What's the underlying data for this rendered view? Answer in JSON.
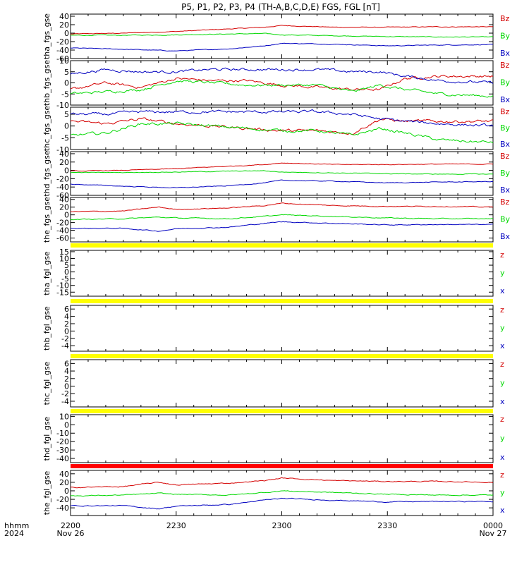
{
  "title": "P5, P1, P2, P3, P4 (TH-A,B,C,D,E) FGS, FGL [nT]",
  "time_axis": {
    "row1_label": "hhmm",
    "row2_label": "2024",
    "ticks": [
      {
        "t": 0,
        "label": "2200",
        "sub": "Nov 26"
      },
      {
        "t": 30,
        "label": "2230",
        "sub": ""
      },
      {
        "t": 60,
        "label": "2300",
        "sub": ""
      },
      {
        "t": 90,
        "label": "2330",
        "sub": ""
      },
      {
        "t": 120,
        "label": "0000",
        "sub": "Nov 27"
      }
    ],
    "range_minutes": [
      0,
      120
    ]
  },
  "colors": {
    "z": "#d40000",
    "y": "#00d800",
    "x": "#0000c0",
    "flag_yellow": "#ffff00",
    "flag_red": "#ff0000"
  },
  "chart_data": [
    {
      "type": "line",
      "ylabel": "tha_fgs_gse",
      "ylim": [
        -60,
        45
      ],
      "yticks": [
        40,
        20,
        0,
        -20,
        -40,
        -60
      ],
      "legend": [
        "Bz",
        "By",
        "Bx"
      ],
      "noise": 1.2,
      "series": [
        {
          "name": "Bz",
          "color": "z",
          "x": [
            0,
            15,
            30,
            45,
            55,
            60,
            75,
            90,
            105,
            120
          ],
          "y": [
            -2,
            0,
            4,
            10,
            14,
            18,
            14,
            14,
            15,
            15
          ]
        },
        {
          "name": "By",
          "color": "y",
          "x": [
            0,
            15,
            30,
            45,
            55,
            60,
            75,
            90,
            105,
            120
          ],
          "y": [
            -5,
            -5,
            -4,
            -2,
            -1,
            -4,
            -6,
            -8,
            -9,
            -9
          ]
        },
        {
          "name": "Bx",
          "color": "x",
          "x": [
            0,
            15,
            30,
            45,
            55,
            60,
            75,
            90,
            105,
            120
          ],
          "y": [
            -35,
            -38,
            -42,
            -37,
            -30,
            -24,
            -26,
            -30,
            -28,
            -27
          ]
        }
      ]
    },
    {
      "type": "line",
      "ylabel": "thb_fgs_gse",
      "ylim": [
        -10,
        10
      ],
      "yticks": [
        10,
        5,
        0,
        -5,
        -10
      ],
      "legend": [
        "Bz",
        "By",
        "Bx"
      ],
      "noise": 0.9,
      "series": [
        {
          "name": "Bz",
          "color": "z",
          "x": [
            0,
            10,
            20,
            30,
            40,
            50,
            60,
            70,
            80,
            88,
            95,
            105,
            120
          ],
          "y": [
            -3,
            0,
            -2,
            2,
            1,
            1,
            -1,
            -2,
            -3,
            -3,
            2,
            3,
            3
          ]
        },
        {
          "name": "By",
          "color": "y",
          "x": [
            0,
            10,
            20,
            30,
            40,
            50,
            60,
            70,
            80,
            88,
            95,
            105,
            120
          ],
          "y": [
            -5,
            -4,
            -3,
            1,
            0,
            -1,
            -1,
            -1,
            -4,
            -1,
            -3,
            -5,
            -6
          ]
        },
        {
          "name": "Bx",
          "color": "x",
          "x": [
            0,
            10,
            20,
            30,
            40,
            50,
            60,
            70,
            80,
            88,
            95,
            105,
            120
          ],
          "y": [
            4,
            6,
            5,
            5,
            6,
            6,
            6,
            6,
            5,
            5,
            3,
            1,
            0
          ]
        }
      ]
    },
    {
      "type": "line",
      "ylabel": "thc_fgs_gse",
      "ylim": [
        -10,
        8
      ],
      "yticks": [
        5,
        0,
        -5,
        -10
      ],
      "legend": [
        "Bz",
        "By",
        "Bx"
      ],
      "noise": 0.9,
      "series": [
        {
          "name": "Bz",
          "color": "z",
          "x": [
            0,
            10,
            20,
            30,
            40,
            50,
            60,
            70,
            80,
            88,
            95,
            105,
            120
          ],
          "y": [
            2,
            1,
            3,
            1,
            0,
            -1,
            -2,
            -2,
            -3,
            3,
            2,
            2,
            2
          ]
        },
        {
          "name": "By",
          "color": "y",
          "x": [
            0,
            10,
            20,
            30,
            40,
            50,
            60,
            70,
            80,
            88,
            95,
            105,
            120
          ],
          "y": [
            -4,
            -3,
            1,
            1,
            0,
            -1,
            -2,
            -2,
            -4,
            -1,
            -3,
            -6,
            -7
          ]
        },
        {
          "name": "Bx",
          "color": "x",
          "x": [
            0,
            10,
            20,
            30,
            40,
            50,
            60,
            70,
            80,
            88,
            95,
            105,
            120
          ],
          "y": [
            5,
            5,
            6,
            6,
            6,
            6,
            6,
            6,
            5,
            3,
            2,
            1,
            0
          ]
        }
      ]
    },
    {
      "type": "line",
      "ylabel": "thd_fgs_gse",
      "ylim": [
        -60,
        45
      ],
      "yticks": [
        40,
        20,
        0,
        -20,
        -40,
        -60
      ],
      "legend": [
        "Bz",
        "By",
        "Bx"
      ],
      "noise": 1.2,
      "series": [
        {
          "name": "Bz",
          "color": "z",
          "x": [
            0,
            15,
            30,
            45,
            55,
            60,
            75,
            90,
            105,
            120
          ],
          "y": [
            -2,
            0,
            4,
            10,
            14,
            18,
            14,
            14,
            15,
            15
          ]
        },
        {
          "name": "By",
          "color": "y",
          "x": [
            0,
            15,
            30,
            45,
            55,
            60,
            75,
            90,
            105,
            120
          ],
          "y": [
            -5,
            -5,
            -4,
            -2,
            -1,
            -4,
            -6,
            -8,
            -9,
            -9
          ]
        },
        {
          "name": "Bx",
          "color": "x",
          "x": [
            0,
            15,
            30,
            45,
            55,
            60,
            75,
            90,
            105,
            120
          ],
          "y": [
            -33,
            -38,
            -42,
            -37,
            -30,
            -24,
            -26,
            -30,
            -28,
            -27
          ]
        }
      ]
    },
    {
      "type": "line",
      "ylabel": "the_fgs_gse",
      "ylim": [
        -70,
        45
      ],
      "yticks": [
        40,
        20,
        0,
        -20,
        -40,
        -60
      ],
      "legend": [
        "Bz",
        "By",
        "Bx"
      ],
      "noise": 1.6,
      "series": [
        {
          "name": "Bz",
          "color": "z",
          "x": [
            0,
            15,
            25,
            30,
            45,
            55,
            60,
            75,
            90,
            105,
            120
          ],
          "y": [
            8,
            10,
            20,
            14,
            18,
            24,
            30,
            24,
            22,
            22,
            20
          ]
        },
        {
          "name": "By",
          "color": "y",
          "x": [
            0,
            15,
            25,
            30,
            45,
            55,
            60,
            75,
            90,
            105,
            120
          ],
          "y": [
            -12,
            -10,
            -6,
            -8,
            -10,
            -4,
            0,
            -4,
            -8,
            -10,
            -10
          ]
        },
        {
          "name": "Bx",
          "color": "x",
          "x": [
            0,
            15,
            25,
            30,
            45,
            55,
            60,
            75,
            90,
            105,
            120
          ],
          "y": [
            -35,
            -35,
            -42,
            -36,
            -32,
            -22,
            -18,
            -22,
            -26,
            -25,
            -25
          ]
        }
      ]
    },
    {
      "type": "line",
      "ylabel": "tha_fgl_gse",
      "ylim": [
        -18,
        16
      ],
      "yticks": [
        15,
        10,
        5,
        0,
        -5,
        -10,
        -15
      ],
      "legend": [
        "z",
        "y",
        "x"
      ],
      "flag": "flag_yellow",
      "noise": 0,
      "series": []
    },
    {
      "type": "line",
      "ylabel": "thb_fgl_gse",
      "ylim": [
        -5.5,
        7
      ],
      "yticks": [
        6,
        4,
        2,
        0,
        -2,
        -4
      ],
      "legend": [
        "z",
        "y",
        "x"
      ],
      "flag": "flag_yellow",
      "noise": 0,
      "series": []
    },
    {
      "type": "line",
      "ylabel": "thc_fgl_gse",
      "ylim": [
        -5.5,
        7
      ],
      "yticks": [
        6,
        4,
        2,
        0,
        -2,
        -4
      ],
      "legend": [
        "z",
        "y",
        "x"
      ],
      "flag": "flag_yellow",
      "noise": 0,
      "series": []
    },
    {
      "type": "line",
      "ylabel": "thd_fgl_gse",
      "ylim": [
        -45,
        12
      ],
      "yticks": [
        10,
        0,
        -10,
        -20,
        -30,
        -40
      ],
      "legend": [
        "z",
        "y",
        "x"
      ],
      "flag": "flag_yellow",
      "noise": 0,
      "series": []
    },
    {
      "type": "line",
      "ylabel": "the_fgl_gse",
      "ylim": [
        -58,
        48
      ],
      "yticks": [
        40,
        20,
        0,
        -20,
        -40
      ],
      "legend": [
        "z",
        "y",
        "x"
      ],
      "flag": "flag_red",
      "noise": 1.6,
      "series": [
        {
          "name": "z",
          "color": "z",
          "x": [
            0,
            15,
            25,
            30,
            45,
            55,
            60,
            75,
            90,
            105,
            120
          ],
          "y": [
            8,
            10,
            20,
            14,
            18,
            24,
            30,
            24,
            22,
            22,
            20
          ]
        },
        {
          "name": "y",
          "color": "y",
          "x": [
            0,
            15,
            25,
            30,
            45,
            55,
            60,
            75,
            90,
            105,
            120
          ],
          "y": [
            -12,
            -10,
            -6,
            -8,
            -10,
            -4,
            0,
            -4,
            -8,
            -10,
            -10
          ]
        },
        {
          "name": "x",
          "color": "x",
          "x": [
            0,
            15,
            25,
            30,
            45,
            55,
            60,
            75,
            90,
            105,
            120
          ],
          "y": [
            -35,
            -35,
            -42,
            -36,
            -32,
            -22,
            -18,
            -22,
            -26,
            -25,
            -25
          ]
        }
      ]
    }
  ]
}
